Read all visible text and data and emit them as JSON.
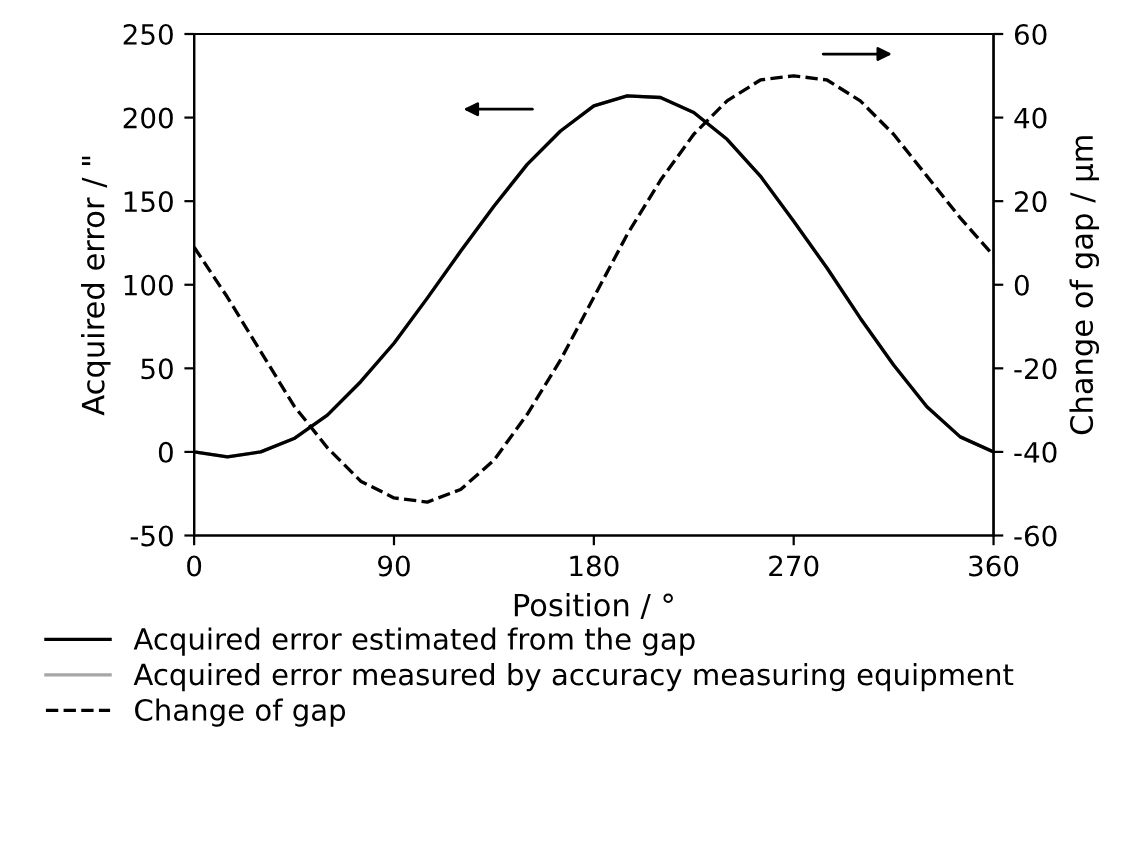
{
  "chart_data": {
    "type": "line",
    "xlabel": "Position / °",
    "ylabel": "Acquired error / \"",
    "y2label": "Change of gap / μm",
    "x": [
      0,
      15,
      30,
      45,
      60,
      75,
      90,
      105,
      120,
      135,
      150,
      165,
      180,
      195,
      210,
      225,
      240,
      255,
      270,
      285,
      300,
      315,
      330,
      345,
      360
    ],
    "series": [
      {
        "name": "Acquired error estimated from the gap",
        "color": "#000000",
        "line_style": "solid",
        "values": [
          0,
          -3,
          0,
          8,
          22,
          42,
          65,
          92,
          120,
          147,
          172,
          192,
          207,
          213,
          212,
          203,
          187,
          165,
          138,
          110,
          80,
          52,
          27,
          9,
          0
        ]
      },
      {
        "name": "Acquired error measured by accuracy measuring equipment",
        "color": "#a6a6a6",
        "line_style": "solid",
        "values": [
          0,
          -3,
          0,
          8,
          22,
          42,
          65,
          92,
          120,
          147,
          172,
          192,
          207,
          213,
          212,
          203,
          187,
          165,
          138,
          110,
          80,
          52,
          27,
          9,
          0
        ]
      },
      {
        "name": "Change of gap",
        "color": "#000000",
        "line_style": "dashed",
        "axis": "y2",
        "values": [
          9,
          -3,
          -16,
          -29,
          -39,
          -47,
          -51,
          -52,
          -49,
          -42,
          -31,
          -18,
          -3,
          12,
          25,
          36,
          44,
          49,
          50,
          49,
          44,
          36,
          26,
          16,
          7
        ]
      }
    ],
    "xlim": [
      0,
      360
    ],
    "xticks": [
      0,
      90,
      180,
      270,
      360
    ],
    "ylim": [
      -50,
      250
    ],
    "yticks": [
      -50,
      0,
      50,
      100,
      150,
      200,
      250
    ],
    "y2lim": [
      -60,
      60
    ],
    "y2ticks": [
      -60,
      -40,
      -20,
      0,
      20,
      40,
      60
    ],
    "legend": "bottom",
    "grid": false,
    "marker": "none"
  }
}
